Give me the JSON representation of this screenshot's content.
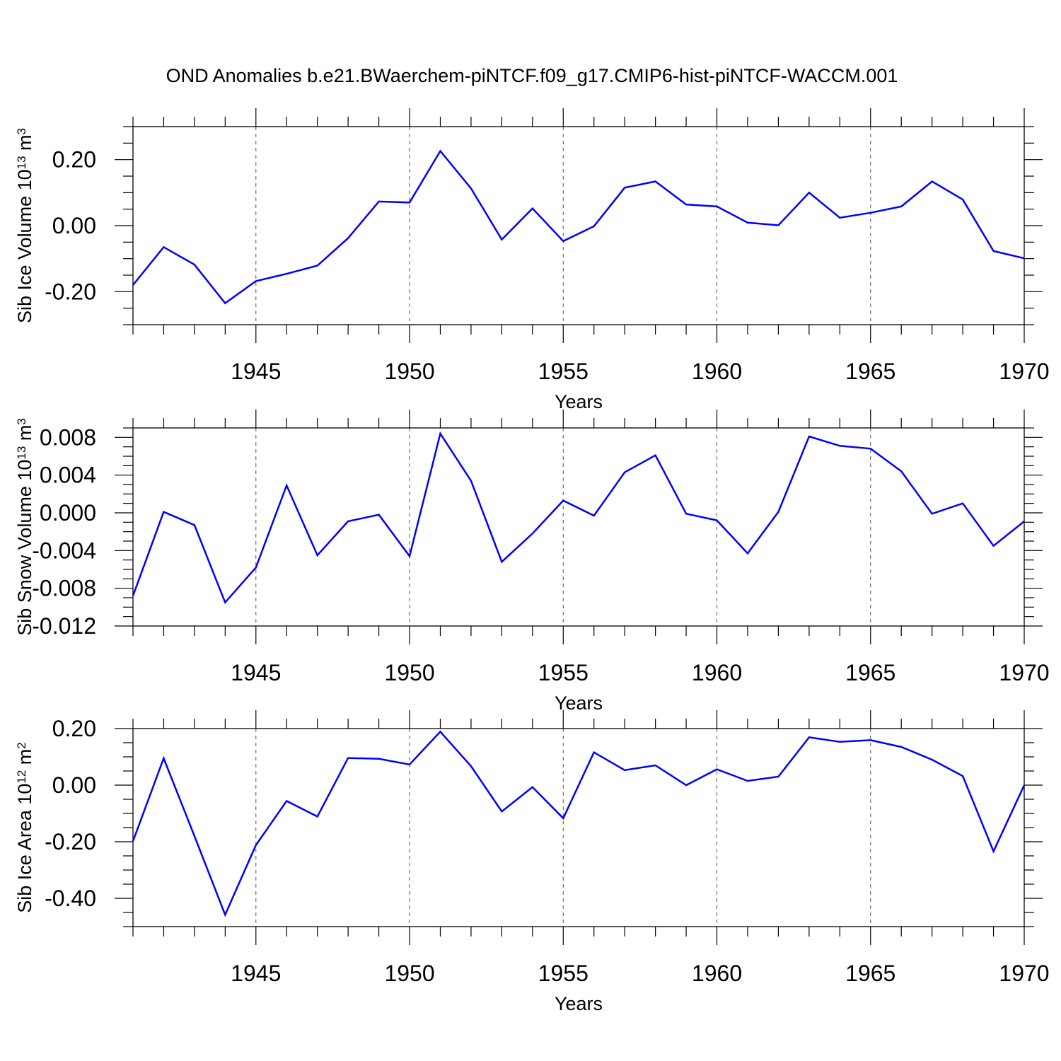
{
  "title": "OND Anomalies b.e21.BWaerchem-piNTCF.f09_g17.CMIP6-hist-piNTCF-WACCM.001",
  "line_color": "#0000ff",
  "chart_data": [
    {
      "type": "line",
      "ylabel": {
        "base": "Sib Ice Volume 10",
        "exp": "13",
        "unit": " m",
        "unit_exp": "3"
      },
      "xlabel": "Years",
      "xlim": [
        1941,
        1970
      ],
      "ylim": [
        -0.3,
        0.3
      ],
      "yticks": [
        -0.2,
        0.0,
        0.2
      ],
      "ytick_labels": [
        "-0.20",
        "0.00",
        "0.20"
      ],
      "yminor": 0.05,
      "xticks": [
        1945,
        1950,
        1955,
        1960,
        1965,
        1970
      ],
      "xtick_labels": [
        "1945",
        "1950",
        "1955",
        "1960",
        "1965",
        "1970"
      ],
      "grid": true,
      "series": [
        {
          "name": "Sib Ice Volume",
          "x": [
            1941,
            1942,
            1943,
            1944,
            1945,
            1946,
            1947,
            1948,
            1949,
            1950,
            1951,
            1952,
            1953,
            1954,
            1955,
            1956,
            1957,
            1958,
            1959,
            1960,
            1961,
            1962,
            1963,
            1964,
            1965,
            1966,
            1967,
            1968,
            1969,
            1970
          ],
          "values": [
            -0.18,
            -0.065,
            -0.118,
            -0.235,
            -0.168,
            -0.146,
            -0.121,
            -0.038,
            0.073,
            0.07,
            0.226,
            0.113,
            -0.042,
            0.052,
            -0.047,
            -0.002,
            0.115,
            0.134,
            0.064,
            0.058,
            0.009,
            0.001,
            0.1,
            0.024,
            0.039,
            0.058,
            0.134,
            0.079,
            -0.077,
            -0.099
          ]
        }
      ]
    },
    {
      "type": "line",
      "ylabel": {
        "base": "Sib Snow Volume 10",
        "exp": "13",
        "unit": " m",
        "unit_exp": "3"
      },
      "xlabel": "Years",
      "xlim": [
        1941,
        1970
      ],
      "ylim": [
        -0.012,
        0.009
      ],
      "yticks": [
        -0.012,
        -0.008,
        -0.004,
        0.0,
        0.004,
        0.008
      ],
      "ytick_labels": [
        "-0.012",
        "-0.008",
        "-0.004",
        "0.000",
        "0.004",
        "0.008"
      ],
      "yminor": 0.001,
      "xticks": [
        1945,
        1950,
        1955,
        1960,
        1965,
        1970
      ],
      "xtick_labels": [
        "1945",
        "1950",
        "1955",
        "1960",
        "1965",
        "1970"
      ],
      "grid": true,
      "series": [
        {
          "name": "Sib Snow Volume",
          "x": [
            1941,
            1942,
            1943,
            1944,
            1945,
            1946,
            1947,
            1948,
            1949,
            1950,
            1951,
            1952,
            1953,
            1954,
            1955,
            1956,
            1957,
            1958,
            1959,
            1960,
            1961,
            1962,
            1963,
            1964,
            1965,
            1966,
            1967,
            1968,
            1969,
            1970
          ],
          "values": [
            -0.0088,
            0.0001,
            -0.0013,
            -0.0095,
            -0.0058,
            0.0029,
            -0.0045,
            -0.0009,
            -0.0002,
            -0.0046,
            0.0084,
            0.0034,
            -0.0052,
            -0.0022,
            0.0013,
            -0.0003,
            0.0043,
            0.0061,
            -0.0001,
            -0.0008,
            -0.0043,
            0.0001,
            0.0081,
            0.0071,
            0.0068,
            0.0044,
            -0.0001,
            0.001,
            -0.0035,
            -0.0009
          ]
        }
      ]
    },
    {
      "type": "line",
      "ylabel": {
        "base": "Sib Ice Area 10",
        "exp": "12",
        "unit": " m",
        "unit_exp": "2"
      },
      "xlabel": "Years",
      "xlim": [
        1941,
        1970
      ],
      "ylim": [
        -0.5,
        0.2
      ],
      "yticks": [
        -0.4,
        -0.2,
        0.0,
        0.2
      ],
      "ytick_labels": [
        "-0.40",
        "-0.20",
        "0.00",
        "0.20"
      ],
      "yminor": 0.05,
      "xticks": [
        1945,
        1950,
        1955,
        1960,
        1965,
        1970
      ],
      "xtick_labels": [
        "1945",
        "1950",
        "1955",
        "1960",
        "1965",
        "1970"
      ],
      "grid": true,
      "series": [
        {
          "name": "Sib Ice Area",
          "x": [
            1941,
            1942,
            1943,
            1944,
            1945,
            1946,
            1947,
            1948,
            1949,
            1950,
            1951,
            1952,
            1953,
            1954,
            1955,
            1956,
            1957,
            1958,
            1959,
            1960,
            1961,
            1962,
            1963,
            1964,
            1965,
            1966,
            1967,
            1968,
            1969,
            1970
          ],
          "values": [
            -0.198,
            0.095,
            -0.18,
            -0.458,
            -0.212,
            -0.056,
            -0.111,
            0.096,
            0.093,
            0.073,
            0.189,
            0.067,
            -0.093,
            -0.007,
            -0.117,
            0.116,
            0.053,
            0.07,
            0.0,
            0.056,
            0.015,
            0.03,
            0.169,
            0.153,
            0.159,
            0.135,
            0.09,
            0.032,
            -0.234,
            0.0
          ]
        }
      ]
    }
  ]
}
